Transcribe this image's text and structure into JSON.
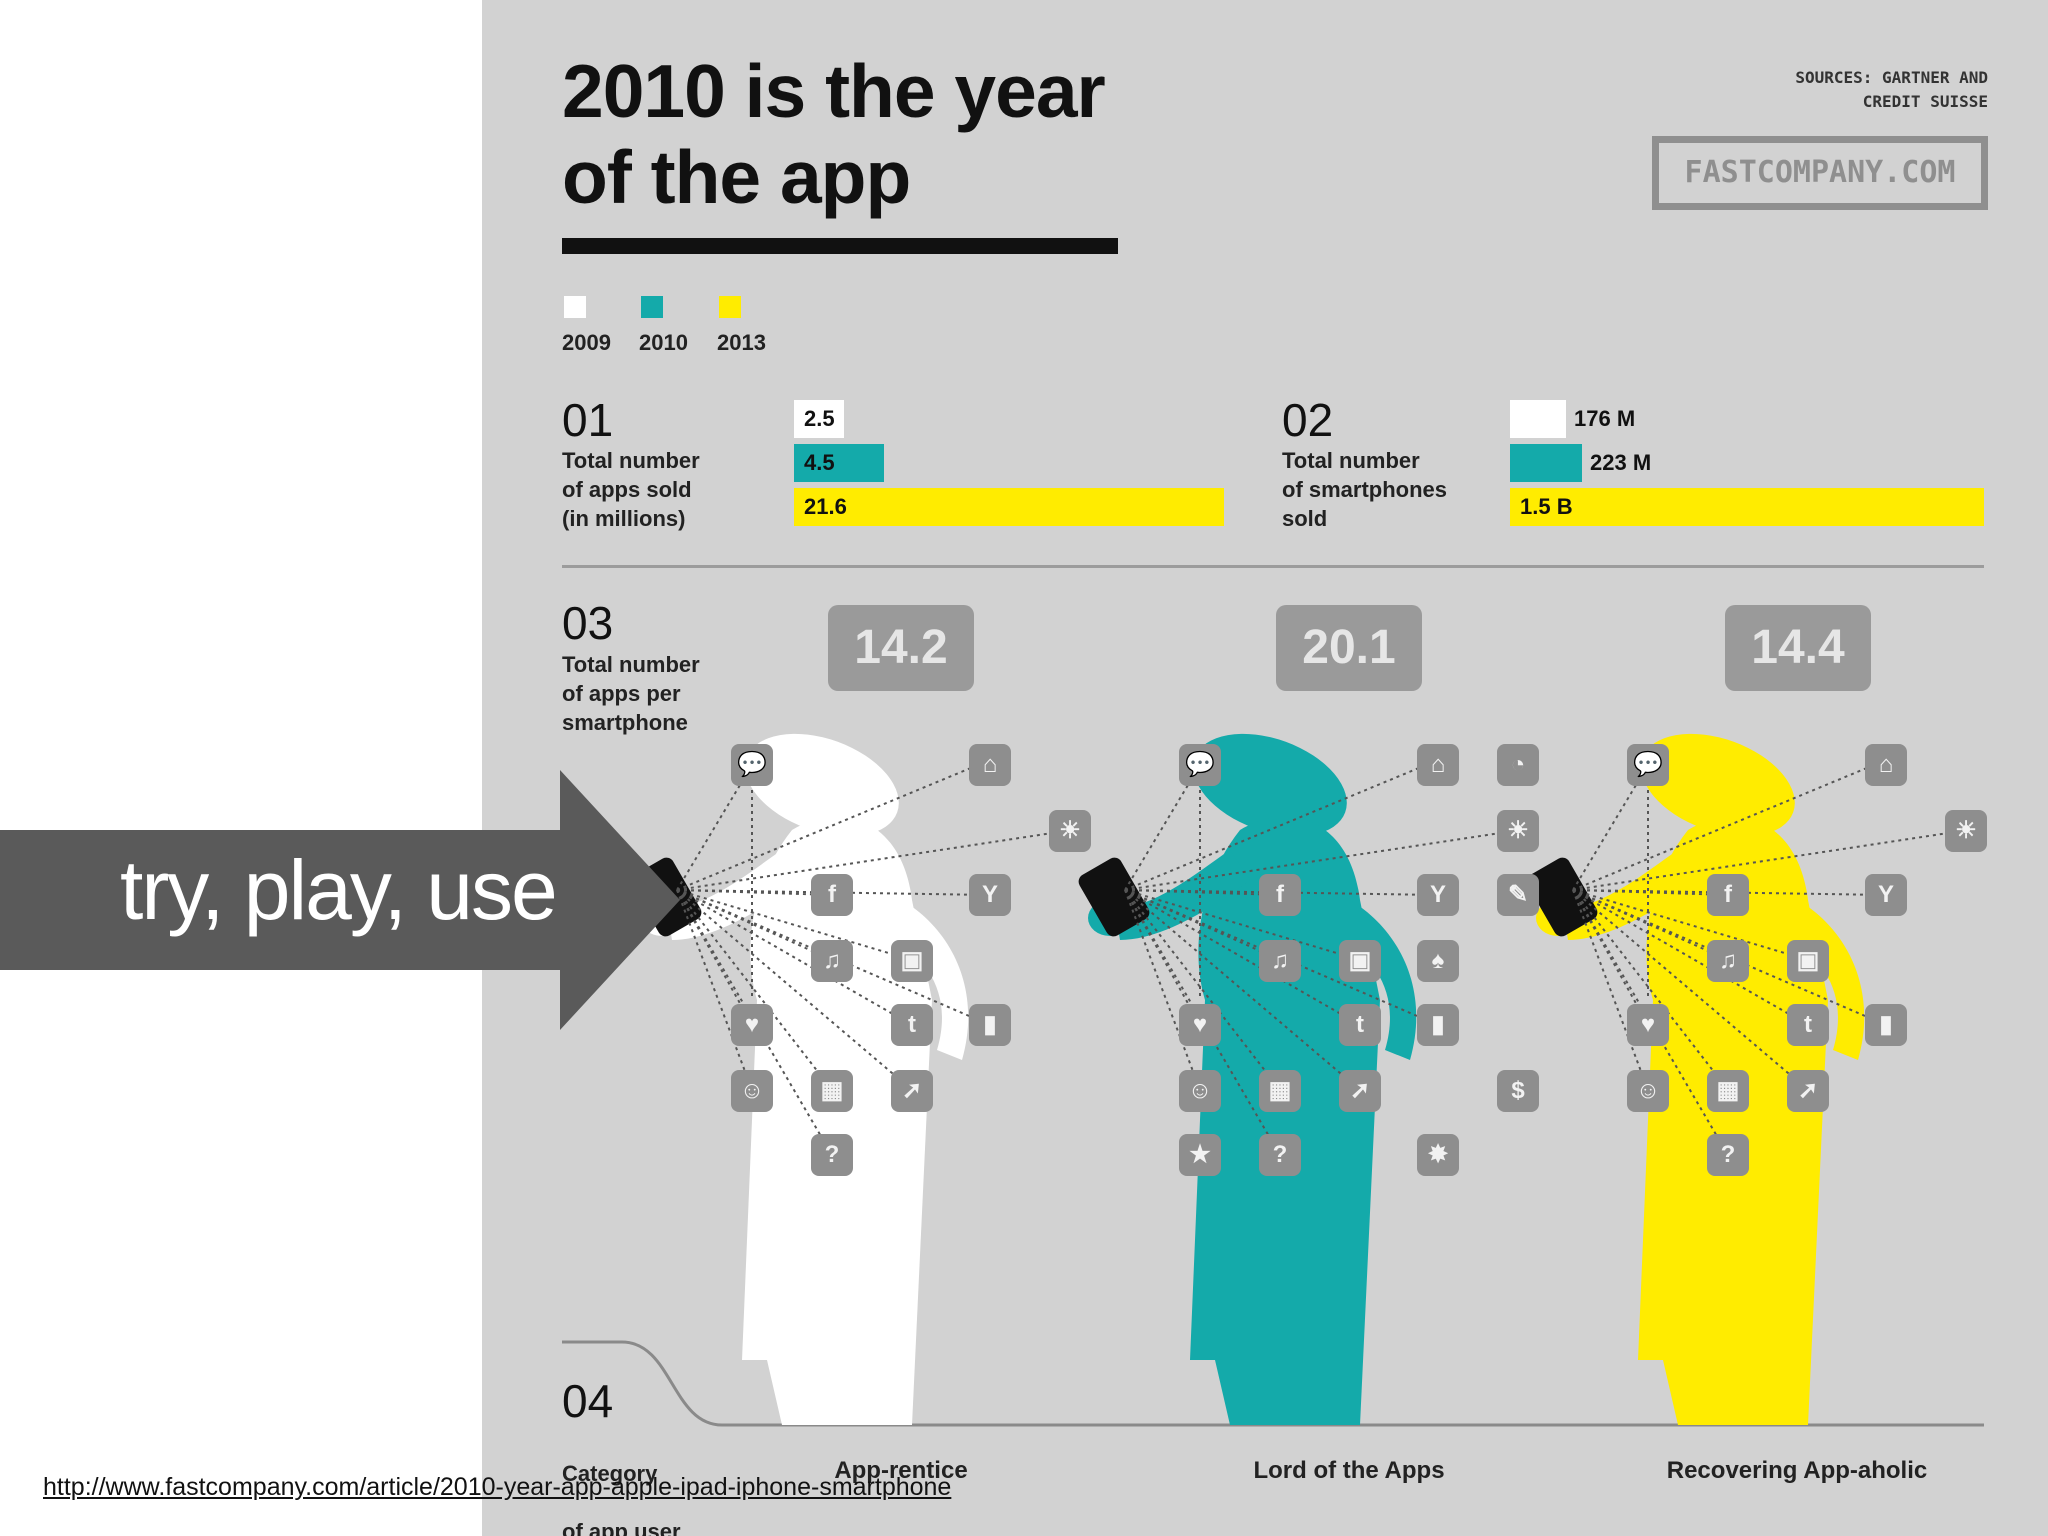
{
  "slide": {
    "arrow_text": "try, play, use",
    "url": "http://www.fastcompany.com/article/2010-year-app-apple-ipad-iphone-smartphone",
    "arrow_color": "#5a5a5a"
  },
  "infographic": {
    "title_line1": "2010 is the year",
    "title_line2": "of the app",
    "sources": "SOURCES: GARTNER AND\nCREDIT SUISSE",
    "brand": "FASTCOMPANY.COM",
    "background": "#d2d2d2",
    "legend": [
      {
        "label": "2009",
        "color": "#ffffff"
      },
      {
        "label": "2010",
        "color": "#14aaaa"
      },
      {
        "label": "2013",
        "color": "#ffec00"
      }
    ],
    "section1": {
      "number": "01",
      "desc": "Total number\nof apps sold\n(in millions)",
      "bars": [
        {
          "year": "2009",
          "value": 2.5,
          "label": "2.5"
        },
        {
          "year": "2010",
          "value": 4.5,
          "label": "4.5"
        },
        {
          "year": "2013",
          "value": 21.6,
          "label": "21.6"
        }
      ]
    },
    "section2": {
      "number": "02",
      "desc": "Total number\nof smartphones\nsold",
      "bars": [
        {
          "year": "2009",
          "value": 176,
          "label": "176 M"
        },
        {
          "year": "2010",
          "value": 223,
          "label": "223 M"
        },
        {
          "year": "2013",
          "value": 1500,
          "label": "1.5 B"
        }
      ]
    },
    "section3": {
      "number": "03",
      "desc": "Total number\nof apps per\nsmartphone",
      "values": [
        "14.2",
        "20.1",
        "14.4"
      ]
    },
    "section4": {
      "number": "04",
      "desc_line1": "Category",
      "desc_line2": "of app user",
      "categories": [
        "App-rentice",
        "Lord of the Apps",
        "Recovering App-aholic"
      ]
    },
    "figure_colors": [
      "#ffffff",
      "#14aaaa",
      "#ffec00"
    ],
    "app_icons": [
      "speech-bubble",
      "home",
      "sun",
      "facebook",
      "cocktail",
      "music",
      "cards",
      "tumblr",
      "chart",
      "heart",
      "smiley",
      "tetris",
      "arrow",
      "question",
      "pacman",
      "pencil",
      "spade",
      "dollar",
      "star",
      "burst"
    ]
  }
}
